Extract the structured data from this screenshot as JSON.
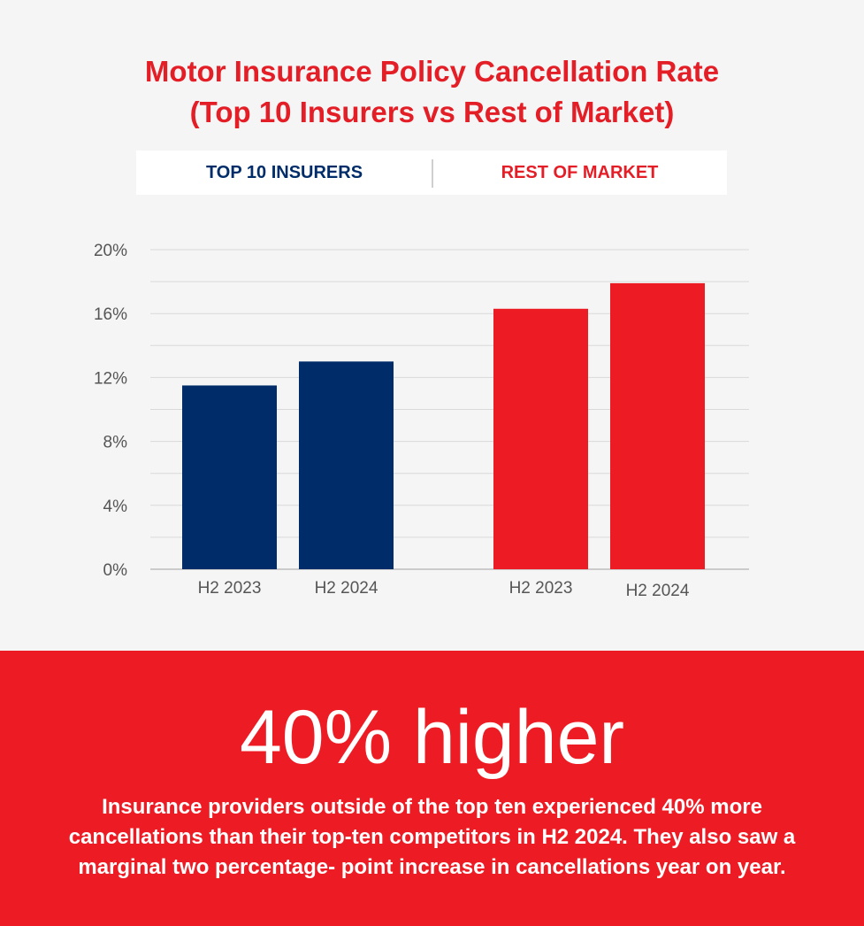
{
  "title_line1": "Motor Insurance Policy Cancellation Rate",
  "title_line2": "(Top 10 Insurers vs Rest of Market)",
  "legend": {
    "top10": "TOP 10 INSURERS",
    "rest": "REST OF MARKET"
  },
  "colors": {
    "top10": "#002d6a",
    "rest": "#ed1c24",
    "title": "#e41e26",
    "background": "#f5f5f5",
    "banner": "#ed1c24"
  },
  "chart_data": {
    "type": "bar",
    "groups": [
      "TOP 10 INSURERS",
      "REST OF MARKET"
    ],
    "categories": [
      "H2 2023",
      "H2 2024"
    ],
    "series": [
      {
        "name": "TOP 10 INSURERS",
        "values": [
          11.5,
          13.0
        ]
      },
      {
        "name": "REST OF MARKET",
        "values": [
          16.3,
          17.9
        ]
      }
    ],
    "ylim": [
      0,
      20
    ],
    "yticks": [
      "0%",
      "4%",
      "8%",
      "12%",
      "16%",
      "20%"
    ],
    "grid": true,
    "legend_position": "top"
  },
  "banner": {
    "headline": "40% higher",
    "body": "Insurance providers outside of the top ten experienced 40% more cancellations than their top-ten competitors in H2 2024. They also saw a marginal two percentage- point increase in cancellations year on year."
  }
}
